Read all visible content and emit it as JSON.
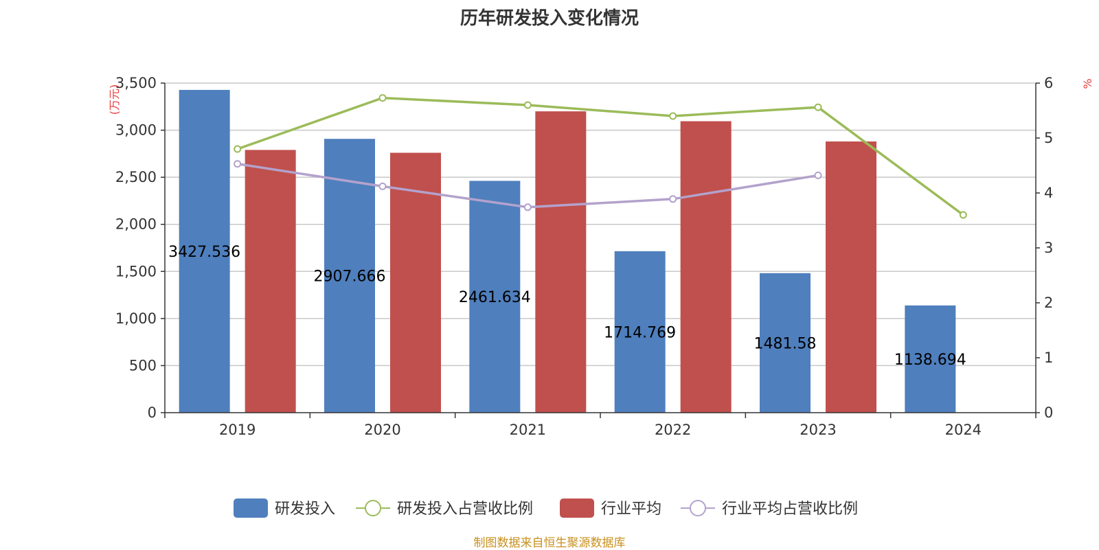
{
  "title": "历年研发投入变化情况",
  "source": "制图数据来自恒生聚源数据库",
  "colors": {
    "rd_bar": "#4f7fbd",
    "industry_bar": "#c0504d",
    "rd_ratio_line": "#9bbb59",
    "industry_ratio_line": "#b3a2cc",
    "unit_red": "#e83a3a"
  },
  "chart_data": {
    "type": "bar",
    "title": "历年研发投入变化情况",
    "categories": [
      "2019",
      "2020",
      "2021",
      "2022",
      "2023",
      "2024"
    ],
    "y_left": {
      "unit": "(万元)",
      "min": 0,
      "max": 3500,
      "ticks": [
        0,
        500,
        1000,
        1500,
        2000,
        2500,
        3000,
        3500
      ],
      "tick_labels": [
        "0",
        "500",
        "1,000",
        "1,500",
        "2,000",
        "2,500",
        "3,000",
        "3,500"
      ]
    },
    "y_right": {
      "unit": "%",
      "min": 0,
      "max": 6,
      "ticks": [
        0,
        1,
        2,
        3,
        4,
        5,
        6
      ],
      "tick_labels": [
        "0",
        "1",
        "2",
        "3",
        "4",
        "5",
        "6"
      ]
    },
    "grid": true,
    "legend_position": "bottom",
    "series": [
      {
        "name": "研发投入",
        "type": "bar",
        "axis": "left",
        "values": [
          3427.536,
          2907.666,
          2461.634,
          1714.769,
          1481.58,
          1138.694
        ],
        "labels": [
          "3427.536",
          "2907.666",
          "2461.634",
          "1714.769",
          "1481.58",
          "1138.694"
        ]
      },
      {
        "name": "研发投入占营收比例",
        "type": "line",
        "axis": "right",
        "values": [
          4.8,
          5.73,
          5.6,
          5.4,
          5.56,
          3.6
        ]
      },
      {
        "name": "行业平均",
        "type": "bar",
        "axis": "left",
        "values": [
          2790,
          2760,
          3200,
          3095,
          2880,
          null
        ]
      },
      {
        "name": "行业平均占营收比例",
        "type": "line",
        "axis": "right",
        "values": [
          4.53,
          4.12,
          3.74,
          3.89,
          4.32,
          null
        ]
      }
    ]
  }
}
